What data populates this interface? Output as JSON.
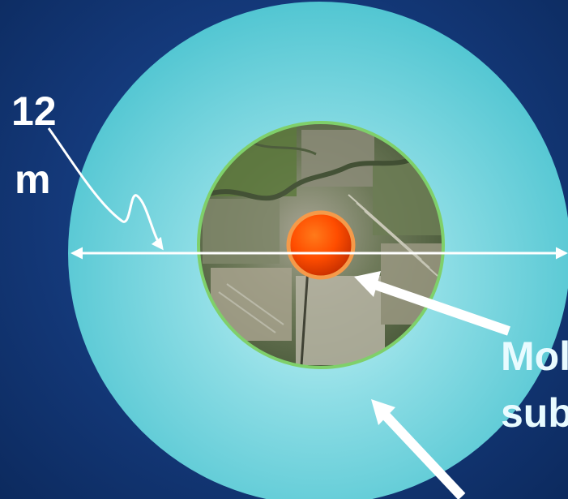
{
  "diagram": {
    "measure_value": "12",
    "measure_unit": "m",
    "label_line1": "Mol",
    "label_line2": "sub"
  },
  "colors": {
    "background": "#14397a",
    "water_outer": "#55c8d3",
    "water_inner": "#b6eef3",
    "earth_border": "#7fd06a",
    "core": "#ff5a0a",
    "core_border": "#f59a4a",
    "arrow": "#ffffff"
  },
  "icons": {
    "terrain": "satellite-terrain-texture",
    "core": "orange-sphere"
  }
}
